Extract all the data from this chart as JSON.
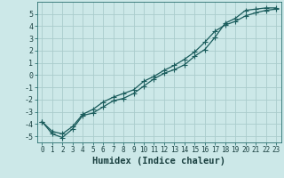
{
  "xlabel": "Humidex (Indice chaleur)",
  "bg_color": "#cce8e8",
  "grid_color": "#aacccc",
  "line_color": "#1a5c5c",
  "line1_x": [
    0,
    1,
    2,
    3,
    4,
    5,
    6,
    7,
    8,
    9,
    10,
    11,
    12,
    13,
    14,
    15,
    16,
    17,
    18,
    19,
    20,
    21,
    22,
    23
  ],
  "line1_y": [
    -3.8,
    -4.8,
    -5.1,
    -4.4,
    -3.3,
    -3.1,
    -2.6,
    -2.1,
    -1.9,
    -1.5,
    -0.9,
    -0.3,
    0.15,
    0.45,
    0.85,
    1.55,
    2.1,
    3.1,
    4.25,
    4.65,
    5.3,
    5.4,
    5.5,
    5.5
  ],
  "line2_x": [
    0,
    1,
    2,
    3,
    4,
    5,
    6,
    7,
    8,
    9,
    10,
    11,
    12,
    13,
    14,
    15,
    16,
    17,
    18,
    19,
    20,
    21,
    22,
    23
  ],
  "line2_y": [
    -3.8,
    -4.6,
    -4.8,
    -4.2,
    -3.2,
    -2.8,
    -2.2,
    -1.8,
    -1.5,
    -1.2,
    -0.5,
    -0.1,
    0.4,
    0.8,
    1.3,
    1.9,
    2.7,
    3.6,
    4.1,
    4.4,
    4.85,
    5.1,
    5.3,
    5.4
  ],
  "xlim": [
    -0.5,
    23.5
  ],
  "ylim": [
    -5.5,
    6.0
  ],
  "yticks": [
    -5,
    -4,
    -3,
    -2,
    -1,
    0,
    1,
    2,
    3,
    4,
    5
  ],
  "xticks": [
    0,
    1,
    2,
    3,
    4,
    5,
    6,
    7,
    8,
    9,
    10,
    11,
    12,
    13,
    14,
    15,
    16,
    17,
    18,
    19,
    20,
    21,
    22,
    23
  ],
  "tick_fontsize": 5.5,
  "ylabel_fontsize": 7.5,
  "marker": "+",
  "markersize": 4,
  "linewidth": 0.9
}
